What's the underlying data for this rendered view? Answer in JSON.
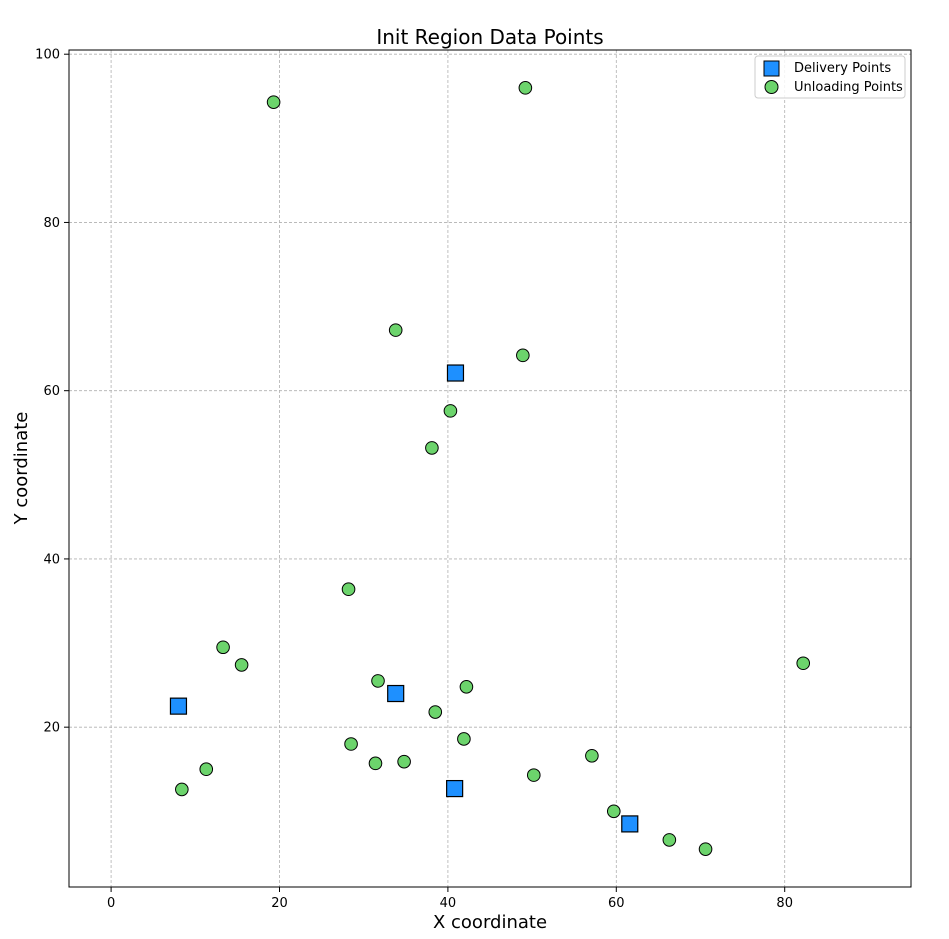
{
  "chart_data": {
    "type": "scatter",
    "title": "Init Region Data Points",
    "xlabel": "X coordinate",
    "ylabel": "Y coordinate",
    "xlim": [
      -5,
      95
    ],
    "ylim": [
      1,
      100.5
    ],
    "xticks": [
      0,
      20,
      40,
      60,
      80
    ],
    "yticks": [
      20,
      40,
      60,
      80,
      100
    ],
    "grid": true,
    "legend_position": "top-right",
    "series": [
      {
        "name": "Delivery Points",
        "marker": "square",
        "color": "#1e90ff",
        "points": [
          [
            8.0,
            22.5
          ],
          [
            33.8,
            24.0
          ],
          [
            40.9,
            62.1
          ],
          [
            40.8,
            12.7
          ],
          [
            61.6,
            8.5
          ]
        ]
      },
      {
        "name": "Unloading Points",
        "marker": "circle",
        "color": "#6cd46c",
        "points": [
          [
            19.3,
            94.3
          ],
          [
            49.2,
            96.0
          ],
          [
            33.8,
            67.2
          ],
          [
            48.9,
            64.2
          ],
          [
            40.3,
            57.6
          ],
          [
            38.1,
            53.2
          ],
          [
            28.2,
            36.4
          ],
          [
            13.3,
            29.5
          ],
          [
            15.5,
            27.4
          ],
          [
            82.2,
            27.6
          ],
          [
            31.7,
            25.5
          ],
          [
            42.2,
            24.8
          ],
          [
            38.5,
            21.8
          ],
          [
            41.9,
            18.6
          ],
          [
            28.5,
            18.0
          ],
          [
            11.3,
            15.0
          ],
          [
            31.4,
            15.7
          ],
          [
            34.8,
            15.9
          ],
          [
            57.1,
            16.6
          ],
          [
            50.2,
            14.3
          ],
          [
            8.4,
            12.6
          ],
          [
            59.7,
            10.0
          ],
          [
            66.3,
            6.6
          ],
          [
            70.6,
            5.5
          ]
        ]
      }
    ]
  }
}
